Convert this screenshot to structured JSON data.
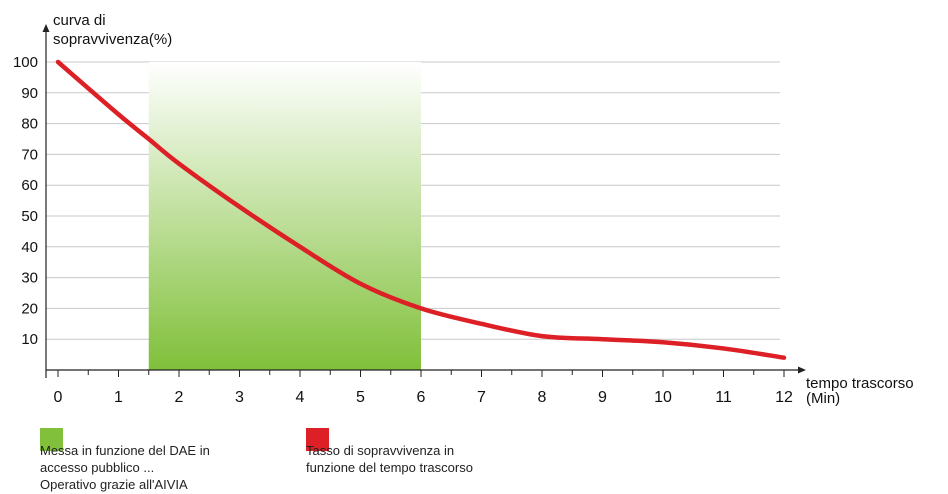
{
  "chart_data": {
    "type": "line",
    "ylabel_lines": [
      "curva di",
      "sopravvivenza(%)"
    ],
    "xlabel_lines": [
      "tempo trascorso",
      "(Min)"
    ],
    "x_ticks": [
      0,
      1,
      2,
      3,
      4,
      5,
      6,
      7,
      8,
      9,
      10,
      11,
      12
    ],
    "y_ticks": [
      10,
      20,
      30,
      40,
      50,
      60,
      70,
      80,
      90,
      100
    ],
    "xlim": [
      0,
      12
    ],
    "ylim": [
      0,
      100
    ],
    "grid": "horizontal",
    "shaded_region": {
      "x_start": 1.5,
      "x_end": 6,
      "color_top": "#ffffff",
      "color_bottom": "#80c03a"
    },
    "series": [
      {
        "color": "#dd1f26",
        "x": [
          0,
          1,
          1.5,
          2,
          3,
          4,
          5,
          6,
          7,
          8,
          9,
          10,
          11,
          12
        ],
        "y": [
          100,
          83,
          75,
          67,
          53,
          40,
          28,
          20,
          15,
          11,
          10,
          9,
          7,
          4
        ]
      }
    ]
  },
  "legend": [
    {
      "swatch_color": "#80c03a",
      "lines": [
        "Messa in funzione del DAE in",
        "accesso pubblico ...",
        "Operativo grazie all'AIVIA"
      ]
    },
    {
      "swatch_color": "#dd1f26",
      "lines": [
        "Tasso di sopravvivenza in",
        "funzione del tempo trascorso"
      ]
    }
  ]
}
